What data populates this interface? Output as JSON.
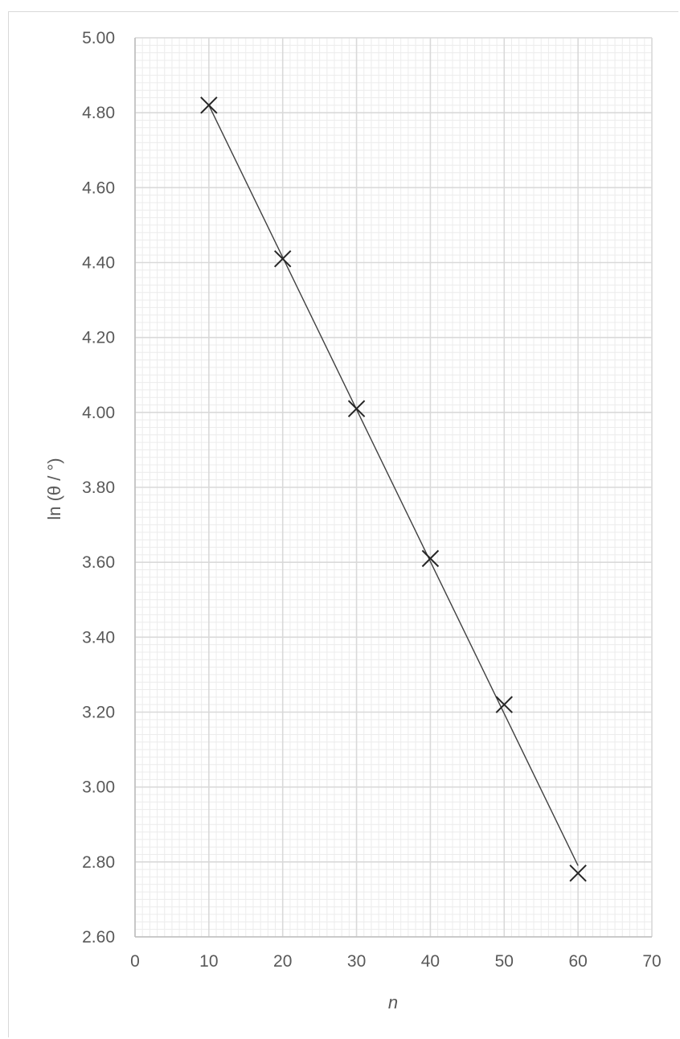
{
  "chart_data": {
    "type": "scatter",
    "xlabel": "n",
    "ylabel": "ln (θ / °)",
    "xlim": [
      0,
      70
    ],
    "ylim": [
      2.6,
      5.0
    ],
    "x_ticks": [
      "0",
      "10",
      "20",
      "30",
      "40",
      "50",
      "60",
      "70"
    ],
    "y_ticks": [
      "2.60",
      "2.80",
      "3.00",
      "3.20",
      "3.40",
      "3.60",
      "3.80",
      "4.00",
      "4.20",
      "4.40",
      "4.60",
      "4.80",
      "5.00"
    ],
    "grid": true,
    "marker": "x",
    "series": [
      {
        "x": [
          10,
          20,
          30,
          40,
          50,
          60
        ],
        "y": [
          4.82,
          4.41,
          4.01,
          3.61,
          3.22,
          2.77
        ]
      }
    ],
    "best_fit_line": {
      "x": [
        10,
        60
      ],
      "y": [
        4.82,
        2.79
      ]
    },
    "colors": {
      "marker": "#262626",
      "line": "#404040",
      "major_grid": "#d9d9d9",
      "minor_grid": "#ececec",
      "text": "#595959"
    }
  }
}
